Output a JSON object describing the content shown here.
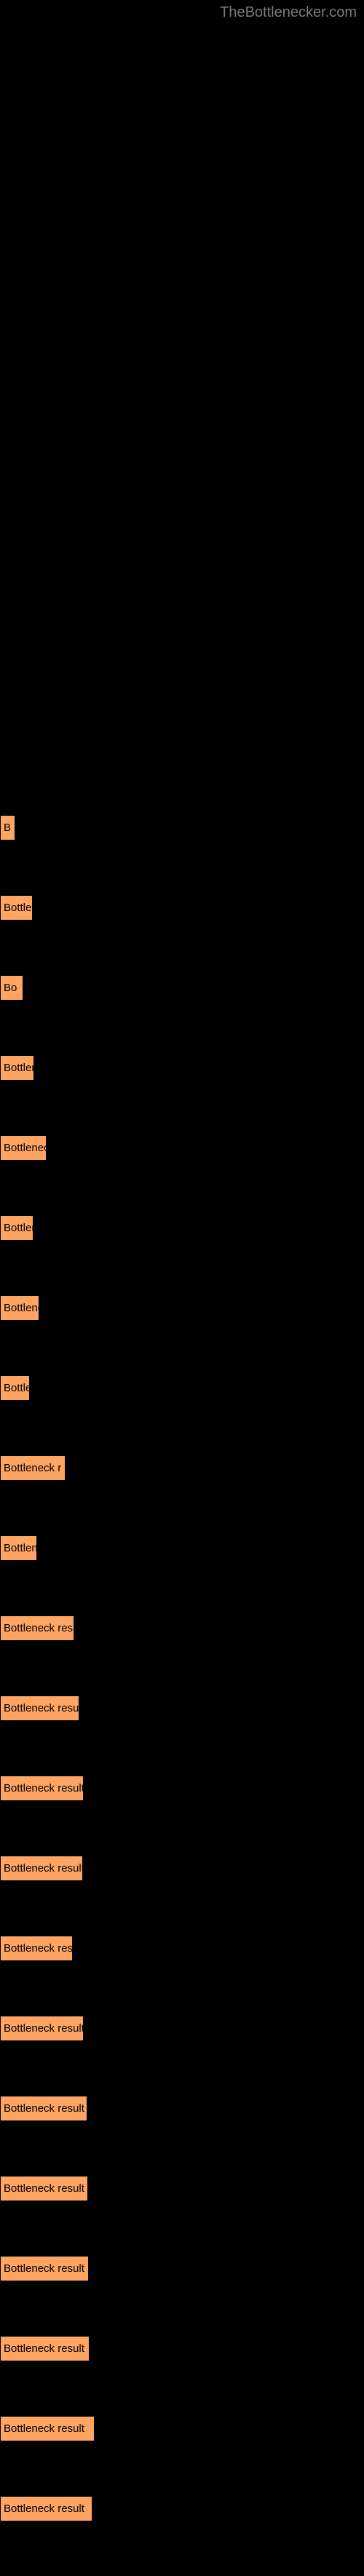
{
  "watermark": "TheBottlenecker.com",
  "bars": [
    {
      "label": "B",
      "width": 11
    },
    {
      "label": "Bottlen",
      "width": 35
    },
    {
      "label": "Bo",
      "width": 22
    },
    {
      "label": "Bottlen",
      "width": 37
    },
    {
      "label": "Bottleneck",
      "width": 54
    },
    {
      "label": "Bottlen",
      "width": 36
    },
    {
      "label": "Bottlenec",
      "width": 44
    },
    {
      "label": "Bottle",
      "width": 31
    },
    {
      "label": "Bottleneck r",
      "width": 80
    },
    {
      "label": "Bottlene",
      "width": 41
    },
    {
      "label": "Bottleneck resu",
      "width": 92
    },
    {
      "label": "Bottleneck result",
      "width": 99
    },
    {
      "label": "Bottleneck result",
      "width": 105
    },
    {
      "label": "Bottleneck result",
      "width": 104
    },
    {
      "label": "Bottleneck res",
      "width": 90
    },
    {
      "label": "Bottleneck result",
      "width": 105
    },
    {
      "label": "Bottleneck result",
      "width": 110
    },
    {
      "label": "Bottleneck result",
      "width": 111
    },
    {
      "label": "Bottleneck result",
      "width": 112
    },
    {
      "label": "Bottleneck result",
      "width": 113
    },
    {
      "label": "Bottleneck result",
      "width": 120
    },
    {
      "label": "Bottleneck result",
      "width": 117
    }
  ],
  "bar_color": "#ffa563",
  "background_color": "#000000",
  "watermark_color": "#7a7a7a"
}
